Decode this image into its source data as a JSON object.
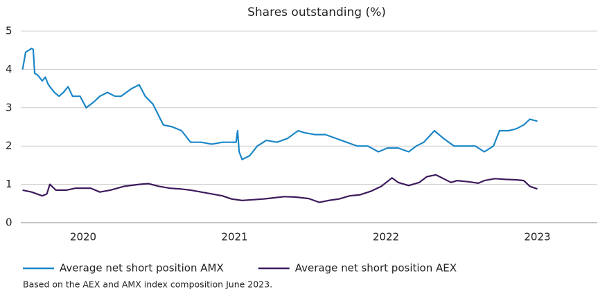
{
  "chart_data": {
    "type": "line",
    "title": "Shares outstanding (%)",
    "footnote": "Based on the AEX and AMX index composition June 2023.",
    "xlim": [
      2019.588,
      2023.396
    ],
    "xticks": [
      2020,
      2021,
      2022,
      2023
    ],
    "ylim": [
      0,
      5
    ],
    "yticks": [
      0,
      1,
      2,
      3,
      4,
      5
    ],
    "grid": true,
    "legend": "bottom",
    "series": [
      {
        "name": "Average net short position AMX",
        "color": "#1a86c7",
        "x": [
          2019.6,
          2019.62,
          2019.66,
          2019.67,
          2019.68,
          2019.7,
          2019.73,
          2019.75,
          2019.77,
          2019.81,
          2019.84,
          2019.87,
          2019.9,
          2019.93,
          2019.98,
          2020.02,
          2020.07,
          2020.11,
          2020.16,
          2020.21,
          2020.25,
          2020.32,
          2020.37,
          2020.41,
          2020.46,
          2020.53,
          2020.59,
          2020.65,
          2020.71,
          2020.78,
          2020.85,
          2020.92,
          2021.01,
          2021.02,
          2021.03,
          2021.05,
          2021.1,
          2021.15,
          2021.21,
          2021.28,
          2021.35,
          2021.42,
          2021.46,
          2021.53,
          2021.6,
          2021.67,
          2021.74,
          2021.81,
          2021.88,
          2021.95,
          2022.01,
          2022.08,
          2022.15,
          2022.2,
          2022.25,
          2022.32,
          2022.38,
          2022.45,
          2022.52,
          2022.59,
          2022.65,
          2022.71,
          2022.75,
          2022.81,
          2022.86,
          2022.91,
          2022.95,
          2023.0
        ],
        "values": [
          4.0,
          4.45,
          4.55,
          4.52,
          3.9,
          3.85,
          3.7,
          3.8,
          3.6,
          3.4,
          3.3,
          3.4,
          3.55,
          3.3,
          3.3,
          3.0,
          3.15,
          3.3,
          3.4,
          3.3,
          3.3,
          3.5,
          3.6,
          3.3,
          3.1,
          2.55,
          2.5,
          2.4,
          2.1,
          2.1,
          2.05,
          2.1,
          2.1,
          2.4,
          1.85,
          1.65,
          1.75,
          2.0,
          2.15,
          2.1,
          2.2,
          2.4,
          2.35,
          2.3,
          2.3,
          2.2,
          2.1,
          2.0,
          2.0,
          1.85,
          1.95,
          1.95,
          1.85,
          2.0,
          2.1,
          2.4,
          2.2,
          2.0,
          2.0,
          2.0,
          1.85,
          2.0,
          2.4,
          2.4,
          2.45,
          2.55,
          2.7,
          2.65
        ]
      },
      {
        "name": "Average net short position AEX",
        "color": "#3d1a5c",
        "x": [
          2019.6,
          2019.66,
          2019.73,
          2019.76,
          2019.78,
          2019.82,
          2019.89,
          2019.95,
          2020.05,
          2020.11,
          2020.18,
          2020.27,
          2020.37,
          2020.43,
          2020.5,
          2020.57,
          2020.64,
          2020.71,
          2020.78,
          2020.85,
          2020.92,
          2020.98,
          2021.05,
          2021.12,
          2021.19,
          2021.26,
          2021.33,
          2021.4,
          2021.49,
          2021.56,
          2021.62,
          2021.69,
          2021.76,
          2021.83,
          2021.9,
          2021.97,
          2022.04,
          2022.08,
          2022.15,
          2022.22,
          2022.27,
          2022.33,
          2022.38,
          2022.43,
          2022.47,
          2022.54,
          2022.61,
          2022.65,
          2022.72,
          2022.79,
          2022.86,
          2022.91,
          2022.95,
          2023.0
        ],
        "values": [
          0.85,
          0.8,
          0.7,
          0.75,
          1.0,
          0.85,
          0.85,
          0.9,
          0.9,
          0.8,
          0.85,
          0.95,
          1.0,
          1.02,
          0.95,
          0.9,
          0.88,
          0.85,
          0.8,
          0.75,
          0.7,
          0.62,
          0.58,
          0.6,
          0.62,
          0.65,
          0.68,
          0.67,
          0.63,
          0.53,
          0.58,
          0.62,
          0.7,
          0.73,
          0.82,
          0.95,
          1.17,
          1.05,
          0.97,
          1.05,
          1.2,
          1.25,
          1.15,
          1.05,
          1.1,
          1.07,
          1.03,
          1.1,
          1.15,
          1.13,
          1.12,
          1.1,
          0.95,
          0.88
        ]
      }
    ]
  }
}
